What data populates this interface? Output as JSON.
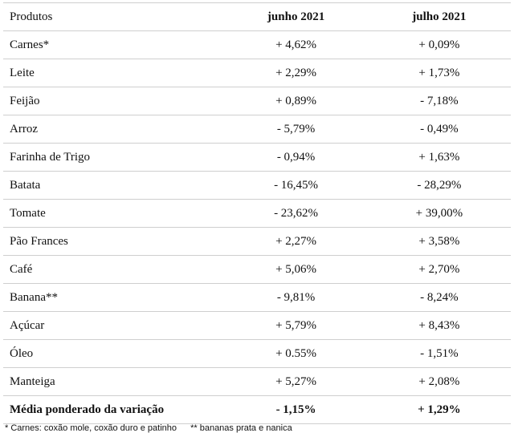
{
  "table": {
    "headers": [
      "Produtos",
      "junho 2021",
      "julho 2021"
    ],
    "rows": [
      [
        "Carnes*",
        "+ 4,62%",
        "+ 0,09%"
      ],
      [
        "Leite",
        "+ 2,29%",
        "+ 1,73%"
      ],
      [
        "Feijão",
        "+ 0,89%",
        "- 7,18%"
      ],
      [
        "Arroz",
        "- 5,79%",
        "- 0,49%"
      ],
      [
        "Farinha de Trigo",
        "- 0,94%",
        "+ 1,63%"
      ],
      [
        "Batata",
        "- 16,45%",
        "- 28,29%"
      ],
      [
        "Tomate",
        "- 23,62%",
        "+ 39,00%"
      ],
      [
        "Pão Frances",
        "+ 2,27%",
        "+ 3,58%"
      ],
      [
        "Café",
        "+ 5,06%",
        "+ 2,70%"
      ],
      [
        "Banana**",
        "- 9,81%",
        "- 8,24%"
      ],
      [
        "Açúcar",
        "+ 5,79%",
        "+ 8,43%"
      ],
      [
        "Óleo",
        "+ 0.55%",
        "- 1,51%"
      ],
      [
        "Manteiga",
        "+ 5,27%",
        "+ 2,08%"
      ]
    ],
    "total": [
      "Média ponderado da variação",
      "- 1,15%",
      "+ 1,29%"
    ]
  },
  "footnotes": {
    "carnes": "* Carnes: coxão mole, coxão duro e patinho",
    "bananas": "** bananas prata e nanica"
  }
}
